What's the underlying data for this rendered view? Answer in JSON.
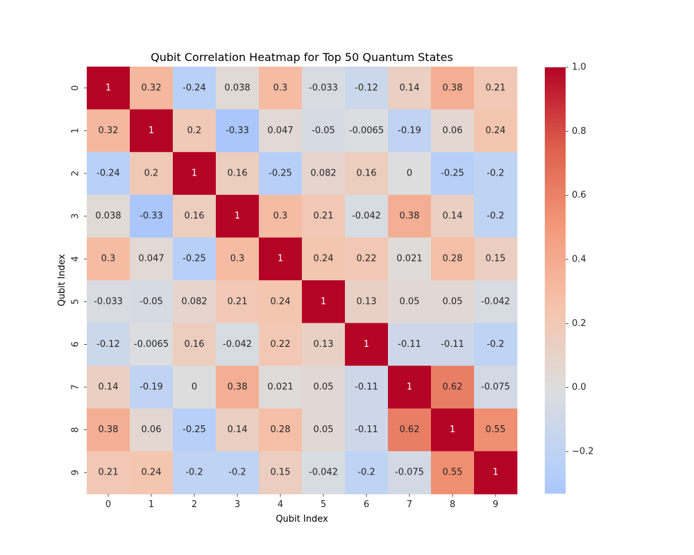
{
  "chart_data": {
    "type": "heatmap",
    "title": "Qubit Correlation Heatmap for Top 50 Quantum States",
    "xlabel": "Qubit Index",
    "ylabel": "Qubit Index",
    "x_categories": [
      "0",
      "1",
      "2",
      "3",
      "4",
      "5",
      "6",
      "7",
      "8",
      "9"
    ],
    "y_categories": [
      "0",
      "1",
      "2",
      "3",
      "4",
      "5",
      "6",
      "7",
      "8",
      "9"
    ],
    "cell_labels": [
      [
        "1",
        "0.32",
        "-0.24",
        "0.038",
        "0.3",
        "-0.033",
        "-0.12",
        "0.14",
        "0.38",
        "0.21"
      ],
      [
        "0.32",
        "1",
        "0.2",
        "-0.33",
        "0.047",
        "-0.05",
        "-0.0065",
        "-0.19",
        "0.06",
        "0.24"
      ],
      [
        "-0.24",
        "0.2",
        "1",
        "0.16",
        "-0.25",
        "0.082",
        "0.16",
        "0",
        "-0.25",
        "-0.2"
      ],
      [
        "0.038",
        "-0.33",
        "0.16",
        "1",
        "0.3",
        "0.21",
        "-0.042",
        "0.38",
        "0.14",
        "-0.2"
      ],
      [
        "0.3",
        "0.047",
        "-0.25",
        "0.3",
        "1",
        "0.24",
        "0.22",
        "0.021",
        "0.28",
        "0.15"
      ],
      [
        "-0.033",
        "-0.05",
        "0.082",
        "0.21",
        "0.24",
        "1",
        "0.13",
        "0.05",
        "0.05",
        "-0.042"
      ],
      [
        "-0.12",
        "-0.0065",
        "0.16",
        "-0.042",
        "0.22",
        "0.13",
        "1",
        "-0.11",
        "-0.11",
        "-0.2"
      ],
      [
        "0.14",
        "-0.19",
        "0",
        "0.38",
        "0.021",
        "0.05",
        "-0.11",
        "1",
        "0.62",
        "-0.075"
      ],
      [
        "0.38",
        "0.06",
        "-0.25",
        "0.14",
        "0.28",
        "0.05",
        "-0.11",
        "0.62",
        "1",
        "0.55"
      ],
      [
        "0.21",
        "0.24",
        "-0.2",
        "-0.2",
        "0.15",
        "-0.042",
        "-0.2",
        "-0.075",
        "0.55",
        "1"
      ]
    ],
    "colorbar": {
      "colormap": "coolwarm",
      "center": 0,
      "vmin": -0.33,
      "vmax": 1.0,
      "ticks": [
        -0.2,
        0.0,
        0.2,
        0.4,
        0.6,
        0.8,
        1.0
      ],
      "tick_labels": [
        "−0.2",
        "0.0",
        "0.2",
        "0.4",
        "0.6",
        "0.8",
        "1.0"
      ]
    },
    "grid": false
  }
}
